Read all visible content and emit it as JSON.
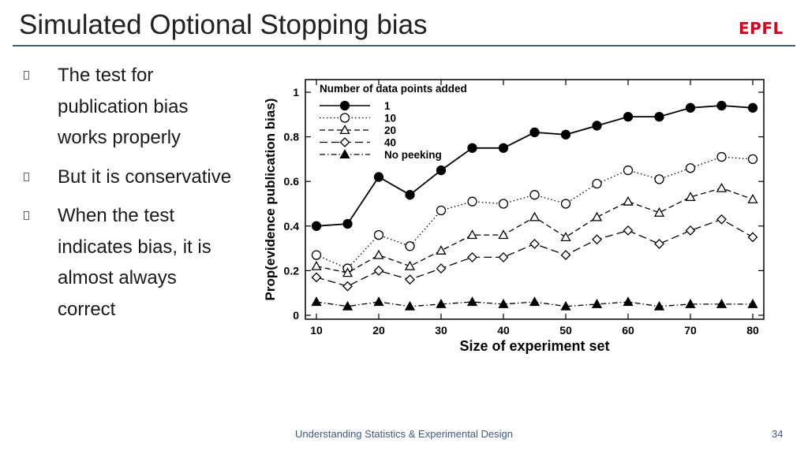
{
  "slide": {
    "title": "Simulated  Optional Stopping bias",
    "logo": "EPFL",
    "footer": "Understanding Statistics & Experimental Design",
    "page_number": "34"
  },
  "bullets": [
    {
      "text": "The test for publication bias works properly"
    },
    {
      "text": "But it is conservative"
    },
    {
      "text": "When the test indicates bias, it is almost always correct"
    }
  ],
  "colors": {
    "title_rule": "#3d5a8a",
    "logo": "#e2001a",
    "series": "#000000"
  },
  "chart_data": {
    "type": "line",
    "xlabel": "Size of experiment set",
    "ylabel": "Prop(evidence publication bias)",
    "xlim": [
      10,
      80
    ],
    "ylim": [
      0,
      1
    ],
    "xticks": [
      10,
      20,
      30,
      40,
      50,
      60,
      70,
      80
    ],
    "yticks": [
      0,
      0.2,
      0.4,
      0.6,
      0.8,
      1
    ],
    "ytick_labels": [
      "0",
      "0.2",
      "0.4",
      "0.6",
      "0.8",
      "1"
    ],
    "legend_title": "Number of data points added",
    "legend_position": "top-left",
    "x": [
      10,
      15,
      20,
      25,
      30,
      35,
      40,
      45,
      50,
      55,
      60,
      65,
      70,
      75,
      80
    ],
    "series": [
      {
        "name": "1",
        "marker": "filled-circle",
        "dash": "solid",
        "values": [
          0.4,
          0.41,
          0.62,
          0.54,
          0.65,
          0.75,
          0.75,
          0.82,
          0.81,
          0.85,
          0.89,
          0.89,
          0.93,
          0.94,
          0.93
        ]
      },
      {
        "name": "10",
        "marker": "open-circle",
        "dash": "dotted",
        "values": [
          0.27,
          0.21,
          0.36,
          0.31,
          0.47,
          0.51,
          0.5,
          0.54,
          0.5,
          0.59,
          0.65,
          0.61,
          0.66,
          0.71,
          0.7
        ]
      },
      {
        "name": "20",
        "marker": "open-triangle",
        "dash": "dashed",
        "values": [
          0.22,
          0.19,
          0.27,
          0.22,
          0.29,
          0.36,
          0.36,
          0.44,
          0.35,
          0.44,
          0.51,
          0.46,
          0.53,
          0.57,
          0.52
        ]
      },
      {
        "name": "40",
        "marker": "open-diamond",
        "dash": "long-dashed",
        "values": [
          0.17,
          0.13,
          0.2,
          0.16,
          0.21,
          0.26,
          0.26,
          0.32,
          0.27,
          0.34,
          0.38,
          0.32,
          0.38,
          0.43,
          0.35
        ]
      },
      {
        "name": "No peeking",
        "marker": "filled-triangle",
        "dash": "dash-dot",
        "values": [
          0.06,
          0.04,
          0.06,
          0.04,
          0.05,
          0.06,
          0.05,
          0.06,
          0.04,
          0.05,
          0.06,
          0.04,
          0.05,
          0.05,
          0.05
        ]
      }
    ]
  }
}
